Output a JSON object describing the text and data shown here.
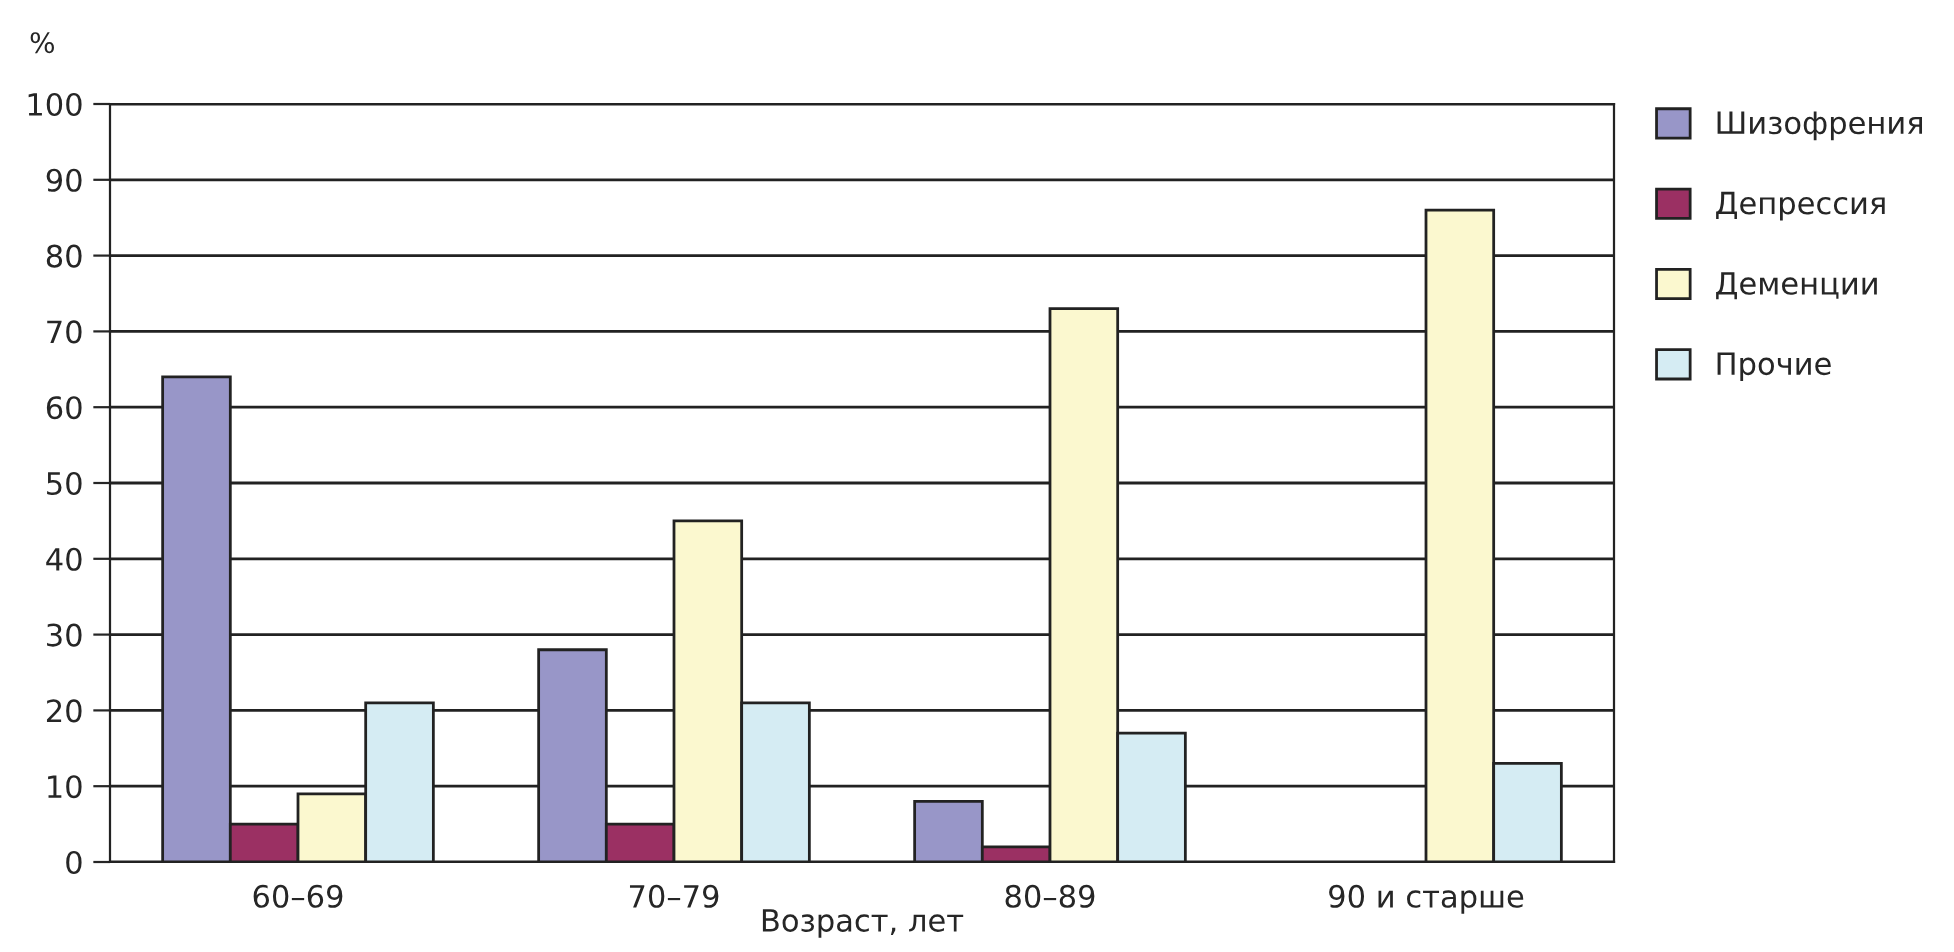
{
  "chart_data": {
    "type": "bar",
    "ylabel": "%",
    "xlabel": "Возраст, лет",
    "categories": [
      "60–69",
      "70–79",
      "80–89",
      "90 и старше"
    ],
    "series": [
      {
        "name": "Шизофрения",
        "color": "#9896c8",
        "values": [
          64,
          28,
          8,
          null
        ]
      },
      {
        "name": "Депрессия",
        "color": "#9b3063",
        "values": [
          5,
          5,
          2,
          null
        ]
      },
      {
        "name": "Деменции",
        "color": "#fbf8cf",
        "values": [
          9,
          45,
          73,
          86
        ]
      },
      {
        "name": "Прочие",
        "color": "#d5ecf3",
        "values": [
          21,
          21,
          17,
          13
        ]
      }
    ],
    "ylim": [
      0,
      100
    ],
    "yticks": [
      0,
      10,
      20,
      30,
      40,
      50,
      60,
      70,
      80,
      90,
      100
    ],
    "grid": "y",
    "legend": "top right"
  }
}
